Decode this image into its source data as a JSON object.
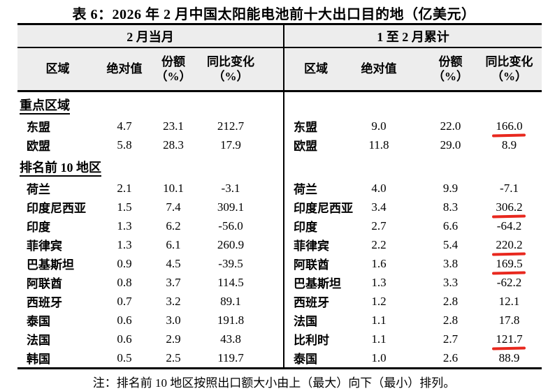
{
  "title": "表 6：2026 年 2 月中国太阳能电池前十大出口目的地（亿美元）",
  "note": "注：排名前 10 地区按照出口额大小由上（最大）向下（最小）排列。",
  "colors": {
    "header_band_bg": "#ededed",
    "border": "#000000",
    "text": "#000000",
    "red_mark": "#e8281e"
  },
  "panels": {
    "left": {
      "period_label": "2 月当月"
    },
    "right": {
      "period_label": "1 至 2 月累计"
    }
  },
  "column_headers": [
    {
      "label": "区域",
      "sub": ""
    },
    {
      "label": "绝对值",
      "sub": ""
    },
    {
      "label": "份额",
      "sub": "（%）"
    },
    {
      "label": "同比变化",
      "sub": "（%）"
    }
  ],
  "rows": [
    {
      "type": "section",
      "left_label": "重点区域",
      "right_label": ""
    },
    {
      "type": "data",
      "left": {
        "region": "东盟",
        "value": "4.7",
        "share": "23.1",
        "yoy": "212.7"
      },
      "right": {
        "region": "东盟",
        "value": "9.0",
        "share": "22.0",
        "yoy": "166.0",
        "yoy_marked": true
      }
    },
    {
      "type": "data",
      "left": {
        "region": "欧盟",
        "value": "5.8",
        "share": "28.3",
        "yoy": "17.9"
      },
      "right": {
        "region": "欧盟",
        "value": "11.8",
        "share": "29.0",
        "yoy": "8.9"
      }
    },
    {
      "type": "section",
      "left_label": "排名前 10 地区",
      "right_label": ""
    },
    {
      "type": "data",
      "left": {
        "region": "荷兰",
        "value": "2.1",
        "share": "10.1",
        "yoy": "-3.1"
      },
      "right": {
        "region": "荷兰",
        "value": "4.0",
        "share": "9.9",
        "yoy": "-7.1"
      }
    },
    {
      "type": "data",
      "left": {
        "region": "印度尼西亚",
        "value": "1.5",
        "share": "7.4",
        "yoy": "309.1"
      },
      "right": {
        "region": "印度尼西亚",
        "value": "3.4",
        "share": "8.3",
        "yoy": "306.2",
        "yoy_marked": true
      }
    },
    {
      "type": "data",
      "left": {
        "region": "印度",
        "value": "1.3",
        "share": "6.2",
        "yoy": "-56.0"
      },
      "right": {
        "region": "印度",
        "value": "2.7",
        "share": "6.6",
        "yoy": "-64.2"
      }
    },
    {
      "type": "data",
      "left": {
        "region": "菲律宾",
        "value": "1.3",
        "share": "6.1",
        "yoy": "260.9"
      },
      "right": {
        "region": "菲律宾",
        "value": "2.2",
        "share": "5.4",
        "yoy": "220.2",
        "yoy_marked": true
      }
    },
    {
      "type": "data",
      "left": {
        "region": "巴基斯坦",
        "value": "0.9",
        "share": "4.5",
        "yoy": "-39.5"
      },
      "right": {
        "region": "阿联酋",
        "value": "1.6",
        "share": "3.8",
        "yoy": "169.5",
        "yoy_marked": true
      }
    },
    {
      "type": "data",
      "left": {
        "region": "阿联酋",
        "value": "0.8",
        "share": "3.7",
        "yoy": "114.5"
      },
      "right": {
        "region": "巴基斯坦",
        "value": "1.3",
        "share": "3.3",
        "yoy": "-62.2"
      }
    },
    {
      "type": "data",
      "left": {
        "region": "西班牙",
        "value": "0.7",
        "share": "3.2",
        "yoy": "89.1"
      },
      "right": {
        "region": "西班牙",
        "value": "1.2",
        "share": "2.8",
        "yoy": "12.1"
      }
    },
    {
      "type": "data",
      "left": {
        "region": "泰国",
        "value": "0.6",
        "share": "3.0",
        "yoy": "191.8"
      },
      "right": {
        "region": "法国",
        "value": "1.1",
        "share": "2.8",
        "yoy": "17.8"
      }
    },
    {
      "type": "data",
      "left": {
        "region": "法国",
        "value": "0.6",
        "share": "2.9",
        "yoy": "43.8"
      },
      "right": {
        "region": "比利时",
        "value": "1.1",
        "share": "2.7",
        "yoy": "121.7",
        "yoy_marked": true
      }
    },
    {
      "type": "data",
      "left": {
        "region": "韩国",
        "value": "0.5",
        "share": "2.5",
        "yoy": "119.7"
      },
      "right": {
        "region": "泰国",
        "value": "1.0",
        "share": "2.6",
        "yoy": "88.9"
      }
    }
  ]
}
